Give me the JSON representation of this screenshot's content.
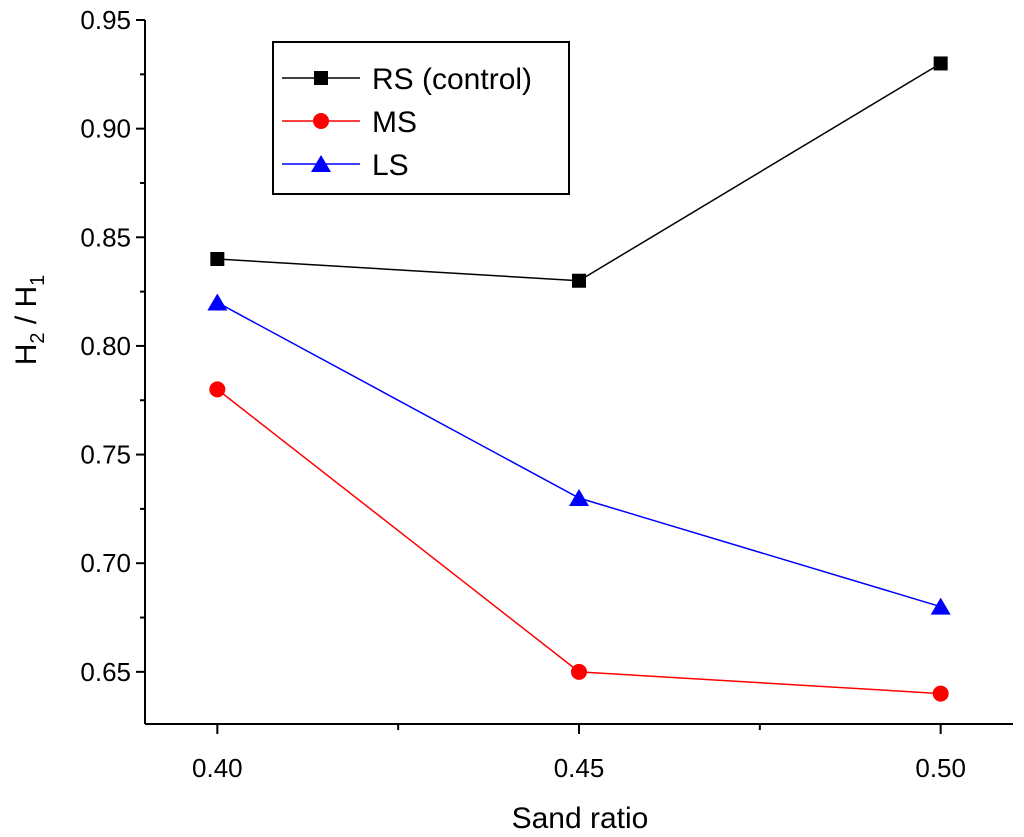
{
  "chart_data": {
    "type": "line",
    "xlabel": "Sand ratio",
    "ylabel": {
      "main": "H",
      "sub2": "2",
      "sep": " / ",
      "sub1": "1"
    },
    "x": [
      0.4,
      0.45,
      0.5
    ],
    "x_tick_labels": [
      "0.40",
      "0.45",
      "0.50"
    ],
    "y_tick_labels": [
      "0.65",
      "0.70",
      "0.75",
      "0.80",
      "0.85",
      "0.90",
      "0.95"
    ],
    "y_ticks": [
      0.65,
      0.7,
      0.75,
      0.8,
      0.85,
      0.9,
      0.95
    ],
    "xlim": [
      0.39,
      0.51
    ],
    "ylim": [
      0.626,
      0.95
    ],
    "grid": false,
    "legend_position": "top-left",
    "series": [
      {
        "name": "RS (control)",
        "values": [
          0.84,
          0.83,
          0.93
        ],
        "color": "#000000",
        "marker": "square"
      },
      {
        "name": "MS",
        "values": [
          0.78,
          0.65,
          0.64
        ],
        "color": "#ff0000",
        "marker": "circle"
      },
      {
        "name": "LS",
        "values": [
          0.82,
          0.73,
          0.68
        ],
        "color": "#0000ff",
        "marker": "triangle"
      }
    ]
  }
}
